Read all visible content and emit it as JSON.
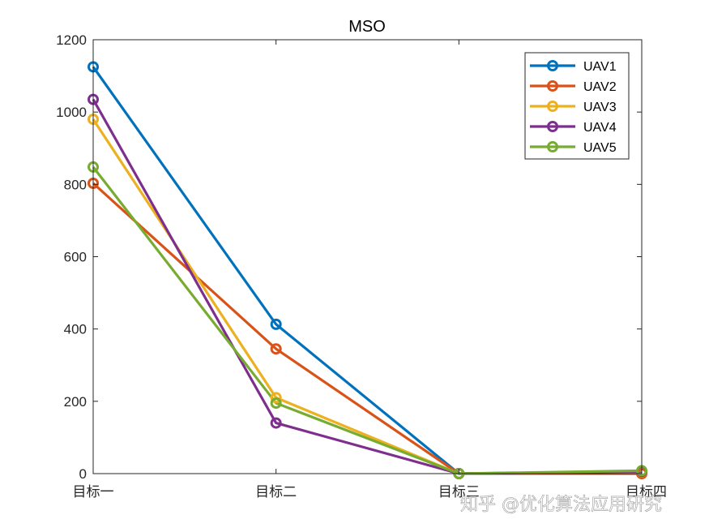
{
  "watermark": "知乎 @优化算法应用研究",
  "chart_data": {
    "type": "line",
    "title": "MSO",
    "categories": [
      "目标一",
      "目标二",
      "目标三",
      "目标四"
    ],
    "ylim": [
      0,
      1200
    ],
    "yticks": [
      0,
      200,
      400,
      600,
      800,
      1000,
      1200
    ],
    "grid": false,
    "legend_position": "top-right",
    "marker": "circle",
    "series": [
      {
        "name": "UAV1",
        "color": "#0072BD",
        "values": [
          1125,
          413,
          0,
          5
        ]
      },
      {
        "name": "UAV2",
        "color": "#D95319",
        "values": [
          803,
          345,
          0,
          0
        ]
      },
      {
        "name": "UAV3",
        "color": "#EDB120",
        "values": [
          980,
          210,
          0,
          5
        ]
      },
      {
        "name": "UAV4",
        "color": "#7E2F8E",
        "values": [
          1035,
          140,
          0,
          6
        ]
      },
      {
        "name": "UAV5",
        "color": "#77AC30",
        "values": [
          848,
          195,
          0,
          8
        ]
      }
    ]
  }
}
